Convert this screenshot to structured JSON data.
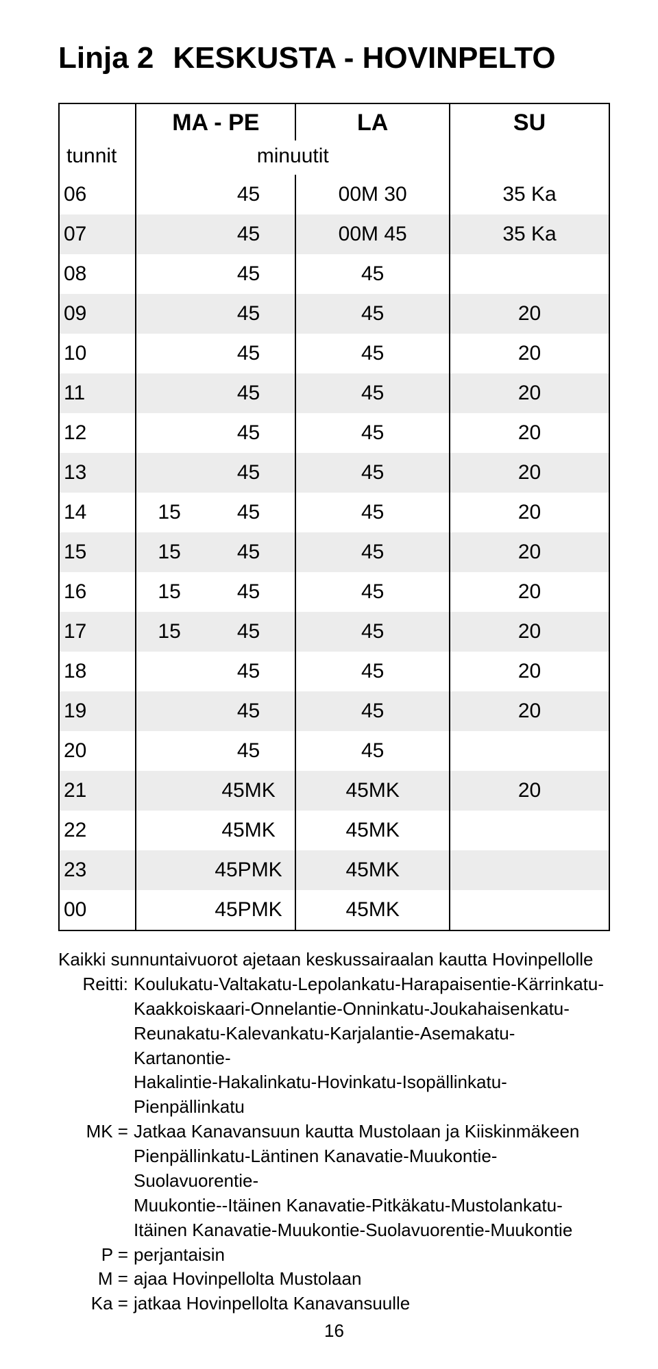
{
  "colors": {
    "text": "#000000",
    "background": "#ffffff",
    "row_alt": "#ececec",
    "border": "#000000"
  },
  "title": {
    "line": "Linja 2",
    "route": "KESKUSTA - HOVINPELTO"
  },
  "headers": {
    "ma_pe": "MA - PE",
    "la": "LA",
    "su": "SU",
    "hours": "tunnit",
    "minutes": "minuutit"
  },
  "rows": [
    {
      "hour": "06",
      "ma1": "",
      "ma2": "45",
      "la": "00M 30",
      "su": "35 Ka"
    },
    {
      "hour": "07",
      "ma1": "",
      "ma2": "45",
      "la": "00M 45",
      "su": "35 Ka"
    },
    {
      "hour": "08",
      "ma1": "",
      "ma2": "45",
      "la": "45",
      "su": ""
    },
    {
      "hour": "09",
      "ma1": "",
      "ma2": "45",
      "la": "45",
      "su": "20"
    },
    {
      "hour": "10",
      "ma1": "",
      "ma2": "45",
      "la": "45",
      "su": "20"
    },
    {
      "hour": "11",
      "ma1": "",
      "ma2": "45",
      "la": "45",
      "su": "20"
    },
    {
      "hour": "12",
      "ma1": "",
      "ma2": "45",
      "la": "45",
      "su": "20"
    },
    {
      "hour": "13",
      "ma1": "",
      "ma2": "45",
      "la": "45",
      "su": "20"
    },
    {
      "hour": "14",
      "ma1": "15",
      "ma2": "45",
      "la": "45",
      "su": "20"
    },
    {
      "hour": "15",
      "ma1": "15",
      "ma2": "45",
      "la": "45",
      "su": "20"
    },
    {
      "hour": "16",
      "ma1": "15",
      "ma2": "45",
      "la": "45",
      "su": "20"
    },
    {
      "hour": "17",
      "ma1": "15",
      "ma2": "45",
      "la": "45",
      "su": "20"
    },
    {
      "hour": "18",
      "ma1": "",
      "ma2": "45",
      "la": "45",
      "su": "20"
    },
    {
      "hour": "19",
      "ma1": "",
      "ma2": "45",
      "la": "45",
      "su": "20"
    },
    {
      "hour": "20",
      "ma1": "",
      "ma2": "45",
      "la": "45",
      "su": ""
    },
    {
      "hour": "21",
      "ma1": "",
      "ma2": "45MK",
      "la": "45MK",
      "su": "20"
    },
    {
      "hour": "22",
      "ma1": "",
      "ma2": "45MK",
      "la": "45MK",
      "su": ""
    },
    {
      "hour": "23",
      "ma1": "",
      "ma2": "45PMK",
      "la": "45MK",
      "su": ""
    },
    {
      "hour": "00",
      "ma1": "",
      "ma2": "45PMK",
      "la": "45MK",
      "su": ""
    }
  ],
  "notes": {
    "intro": "Kaikki sunnuntaivuorot ajetaan keskussairaalan kautta Hovinpellolle",
    "reitti_label": "Reitti:",
    "reitti_lines": [
      "Koulukatu-Valtakatu-Lepolankatu-Harapaisentie-Kärrinkatu-",
      "Kaakkoiskaari-Onnelantie-Onninkatu-Joukahaisenkatu-",
      "Reunakatu-Kalevankatu-Karjalantie-Asemakatu-Kartanontie-",
      "Hakalintie-Hakalinkatu-Hovinkatu-Isopällinkatu-Pienpällinkatu"
    ],
    "mk_label": "MK =",
    "mk_lines": [
      "Jatkaa Kanavansuun kautta Mustolaan ja Kiiskinmäkeen",
      "Pienpällinkatu-Läntinen Kanavatie-Muukontie-Suolavuorentie-",
      "Muukontie--Itäinen Kanavatie-Pitkäkatu-Mustolankatu-",
      "Itäinen Kanavatie-Muukontie-Suolavuorentie-Muukontie"
    ],
    "p_label": "P =",
    "p_text": "perjantaisin",
    "m_label": "M =",
    "m_text": "ajaa Hovinpellolta Mustolaan",
    "ka_label": "Ka =",
    "ka_text": "jatkaa Hovinpellolta Kanavansuulle"
  },
  "page_number": "16"
}
